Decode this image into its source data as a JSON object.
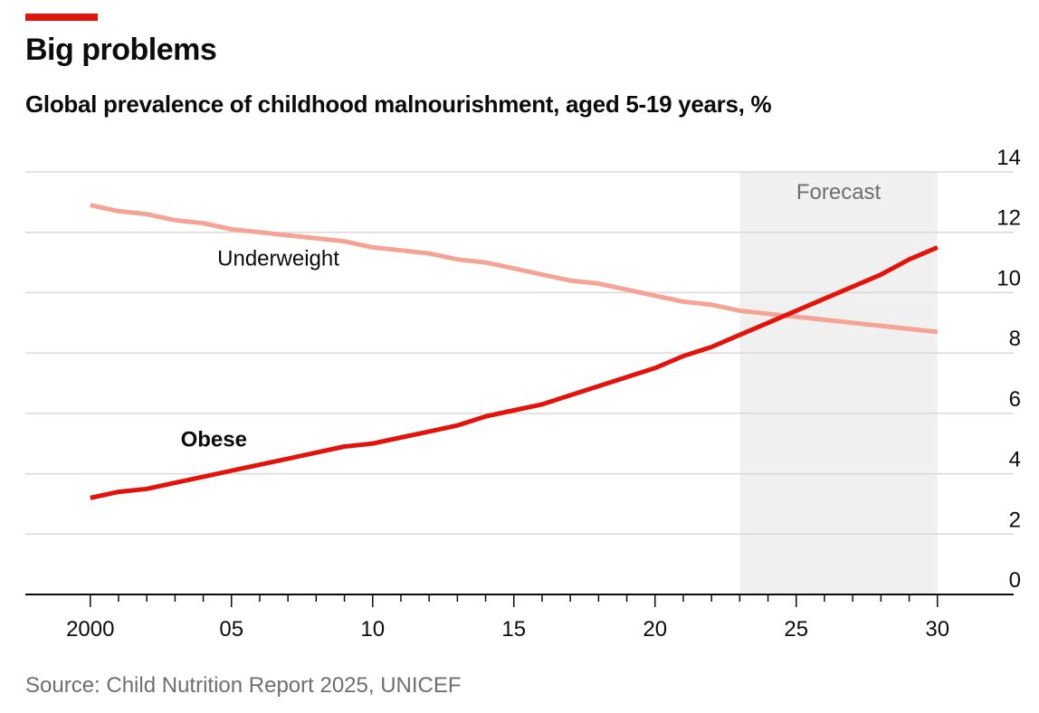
{
  "header": {
    "title": "Big problems",
    "subtitle": "Global prevalence of childhood malnourishment, aged 5-19 years, %"
  },
  "footer": {
    "source": "Source: Child Nutrition Report 2025, UNICEF"
  },
  "colors": {
    "accent": "#e3120b",
    "obese": "#e3120b",
    "underweight": "#f5a394",
    "forecast_band": "#f0f0f0",
    "gridline": "#d9d9d9"
  },
  "chart_data": {
    "type": "line",
    "x": [
      2000,
      2001,
      2002,
      2003,
      2004,
      2005,
      2006,
      2007,
      2008,
      2009,
      2010,
      2011,
      2012,
      2013,
      2014,
      2015,
      2016,
      2017,
      2018,
      2019,
      2020,
      2021,
      2022,
      2023,
      2024,
      2025,
      2026,
      2027,
      2028,
      2029,
      2030
    ],
    "series": [
      {
        "name": "Underweight",
        "values": [
          12.9,
          12.7,
          12.6,
          12.4,
          12.3,
          12.1,
          12.0,
          11.9,
          11.8,
          11.7,
          11.5,
          11.4,
          11.3,
          11.1,
          11.0,
          10.8,
          10.6,
          10.4,
          10.3,
          10.1,
          9.9,
          9.7,
          9.6,
          9.4,
          9.3,
          9.2,
          9.1,
          9.0,
          8.9,
          8.8,
          8.7
        ]
      },
      {
        "name": "Obese",
        "values": [
          3.2,
          3.4,
          3.5,
          3.7,
          3.9,
          4.1,
          4.3,
          4.5,
          4.7,
          4.9,
          5.0,
          5.2,
          5.4,
          5.6,
          5.9,
          6.1,
          6.3,
          6.6,
          6.9,
          7.2,
          7.5,
          7.9,
          8.2,
          8.6,
          9.0,
          9.4,
          9.8,
          10.2,
          10.6,
          11.1,
          11.5
        ]
      }
    ],
    "forecast_range": [
      2023,
      2030
    ],
    "forecast_label": "Forecast",
    "x_ticks": [
      2000,
      2005,
      2010,
      2015,
      2020,
      2025,
      2030
    ],
    "x_tick_labels": [
      "2000",
      "05",
      "10",
      "15",
      "20",
      "25",
      "30"
    ],
    "y_ticks": [
      0,
      2,
      4,
      6,
      8,
      10,
      12,
      14
    ],
    "y_tick_labels": [
      "0",
      "2",
      "4",
      "6",
      "8",
      "10",
      "12",
      "14"
    ],
    "xlim": [
      1997.7,
      2032.7
    ],
    "ylim": [
      0,
      14
    ],
    "y_axis_side": "right",
    "grid": true,
    "legend": "direct-labels",
    "series_labels": [
      {
        "text": "Underweight",
        "x": 2004.5,
        "y": 10.9,
        "bold": false
      },
      {
        "text": "Obese",
        "x": 2003.2,
        "y": 4.9,
        "bold": true
      }
    ]
  }
}
